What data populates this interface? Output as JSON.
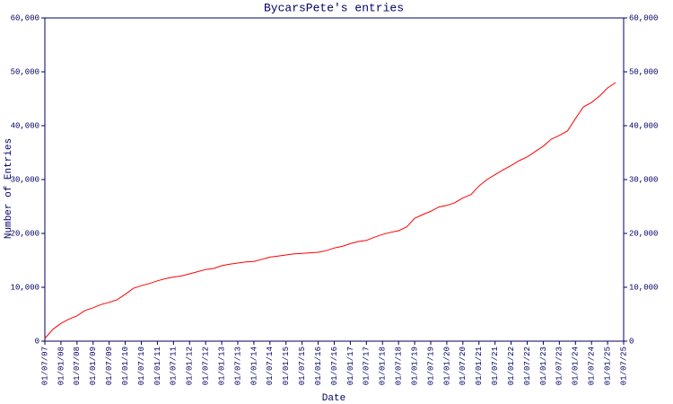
{
  "chart_data": {
    "type": "line",
    "title": "BycarsPete's entries",
    "x_label": "Date",
    "y_label": "Number of Entries",
    "categories": [
      "01/07/07",
      null,
      "01/01/08",
      null,
      "01/07/08",
      null,
      "01/01/09",
      null,
      "01/07/09",
      null,
      "01/01/10",
      null,
      "01/07/10",
      null,
      "01/01/11",
      null,
      "01/07/11",
      null,
      "01/01/12",
      null,
      "01/07/12",
      null,
      "01/01/13",
      null,
      "01/07/13",
      null,
      "01/01/14",
      null,
      "01/07/14",
      null,
      "01/01/15",
      null,
      "01/07/15",
      null,
      "01/01/16",
      null,
      "01/07/16",
      null,
      "01/01/17",
      null,
      "01/07/17",
      null,
      "01/01/18",
      null,
      "01/07/18",
      null,
      "01/01/19",
      null,
      "01/07/19",
      null,
      "01/01/20",
      null,
      "01/07/20",
      null,
      "01/01/21",
      null,
      "01/07/21",
      null,
      "01/01/22",
      null,
      "01/07/22",
      null,
      "01/01/23",
      null,
      "01/07/23",
      null,
      "01/01/24",
      null,
      "01/07/24",
      null,
      "01/01/25",
      null,
      "01/07/25"
    ],
    "series": [
      {
        "name": "BycarsPete",
        "color": "#ff0000",
        "values": [
          500,
          2200,
          3300,
          4100,
          4700,
          5700,
          6200,
          6800,
          7200,
          7700,
          8700,
          9800,
          10300,
          10700,
          11200,
          11600,
          11900,
          12100,
          12500,
          12900,
          13300,
          13500,
          14000,
          14300,
          14500,
          14700,
          14800,
          15200,
          15600,
          15800,
          16000,
          16200,
          16300,
          16400,
          16500,
          16800,
          17300,
          17600,
          18100,
          18500,
          18700,
          19300,
          19800,
          20200,
          20500,
          21200,
          22800,
          23500,
          24100,
          24900,
          25200,
          25700,
          26600,
          27200,
          28800,
          30000,
          30900,
          31800,
          32600,
          33500,
          34200,
          35200,
          36200,
          37500,
          38200,
          39000,
          41300,
          43500,
          44300,
          45500,
          47000,
          48000,
          null
        ]
      }
    ],
    "ylim": [
      0,
      60000
    ],
    "yticks": [
      0,
      {
        "value": 10000,
        "label": "10,000"
      },
      {
        "value": 20000,
        "label": "20,000"
      },
      {
        "value": 30000,
        "label": "30,000"
      },
      {
        "value": 40000,
        "label": "40,000"
      },
      {
        "value": 50000,
        "label": "50,000"
      },
      {
        "value": 60000,
        "label": "60,000"
      }
    ],
    "y2lim": [
      0,
      60000
    ],
    "y2ticks": [
      0,
      {
        "value": 10000,
        "label": "10,000"
      },
      {
        "value": 20000,
        "label": "20,000"
      },
      {
        "value": 30000,
        "label": "30,000"
      },
      {
        "value": 40000,
        "label": "40,000"
      },
      {
        "value": 50000,
        "label": "50,000"
      },
      {
        "value": 60000,
        "label": "60,000"
      }
    ],
    "axis_color": "#000066"
  }
}
